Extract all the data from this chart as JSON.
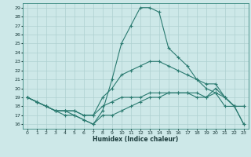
{
  "title": "",
  "xlabel": "Humidex (Indice chaleur)",
  "bg_color": "#cde8e8",
  "grid_color": "#aed0d0",
  "line_color": "#2a7a70",
  "xlim": [
    -0.5,
    23.5
  ],
  "ylim": [
    15.5,
    29.5
  ],
  "xticks": [
    0,
    1,
    2,
    3,
    4,
    5,
    6,
    7,
    8,
    9,
    10,
    11,
    12,
    13,
    14,
    15,
    16,
    17,
    18,
    19,
    20,
    21,
    22,
    23
  ],
  "yticks": [
    16,
    17,
    18,
    19,
    20,
    21,
    22,
    23,
    24,
    25,
    26,
    27,
    28,
    29
  ],
  "line1_x": [
    0,
    1,
    2,
    3,
    4,
    5,
    6,
    7,
    8,
    9,
    10,
    11,
    12,
    13,
    14,
    15,
    16,
    17,
    18,
    19,
    20,
    21,
    22,
    23
  ],
  "line1_y": [
    19,
    18.5,
    18,
    17.5,
    17,
    17,
    16.5,
    16,
    17,
    17,
    17.5,
    18,
    18.5,
    19,
    19,
    19.5,
    19.5,
    19.5,
    19,
    19,
    20,
    19,
    18,
    16
  ],
  "line2_x": [
    0,
    1,
    2,
    3,
    4,
    5,
    6,
    7,
    8,
    9,
    10,
    11,
    12,
    13,
    14,
    15,
    16,
    17,
    18,
    19,
    20,
    21,
    22,
    23
  ],
  "line2_y": [
    19,
    18.5,
    18,
    17.5,
    17.5,
    17,
    16.5,
    16,
    17.5,
    21,
    25,
    27,
    29,
    29,
    28.5,
    24.5,
    23.5,
    22.5,
    21,
    20.5,
    20.5,
    19,
    18,
    18
  ],
  "line3_x": [
    0,
    1,
    2,
    3,
    4,
    5,
    6,
    7,
    8,
    9,
    10,
    11,
    12,
    13,
    14,
    15,
    16,
    17,
    18,
    19,
    20,
    21,
    22,
    23
  ],
  "line3_y": [
    19,
    18.5,
    18,
    17.5,
    17.5,
    17.5,
    17,
    17,
    18,
    18.5,
    19,
    19,
    19,
    19.5,
    19.5,
    19.5,
    19.5,
    19.5,
    19.5,
    19,
    19.5,
    18,
    18,
    16
  ],
  "line4_x": [
    0,
    1,
    2,
    3,
    4,
    5,
    6,
    7,
    8,
    9,
    10,
    11,
    12,
    13,
    14,
    15,
    16,
    17,
    18,
    19,
    20,
    21,
    22,
    23
  ],
  "line4_y": [
    19,
    18.5,
    18,
    17.5,
    17.5,
    17.5,
    17,
    17,
    19,
    20,
    21.5,
    22,
    22.5,
    23,
    23,
    22.5,
    22,
    21.5,
    21,
    20,
    19.5,
    19,
    18,
    18
  ]
}
